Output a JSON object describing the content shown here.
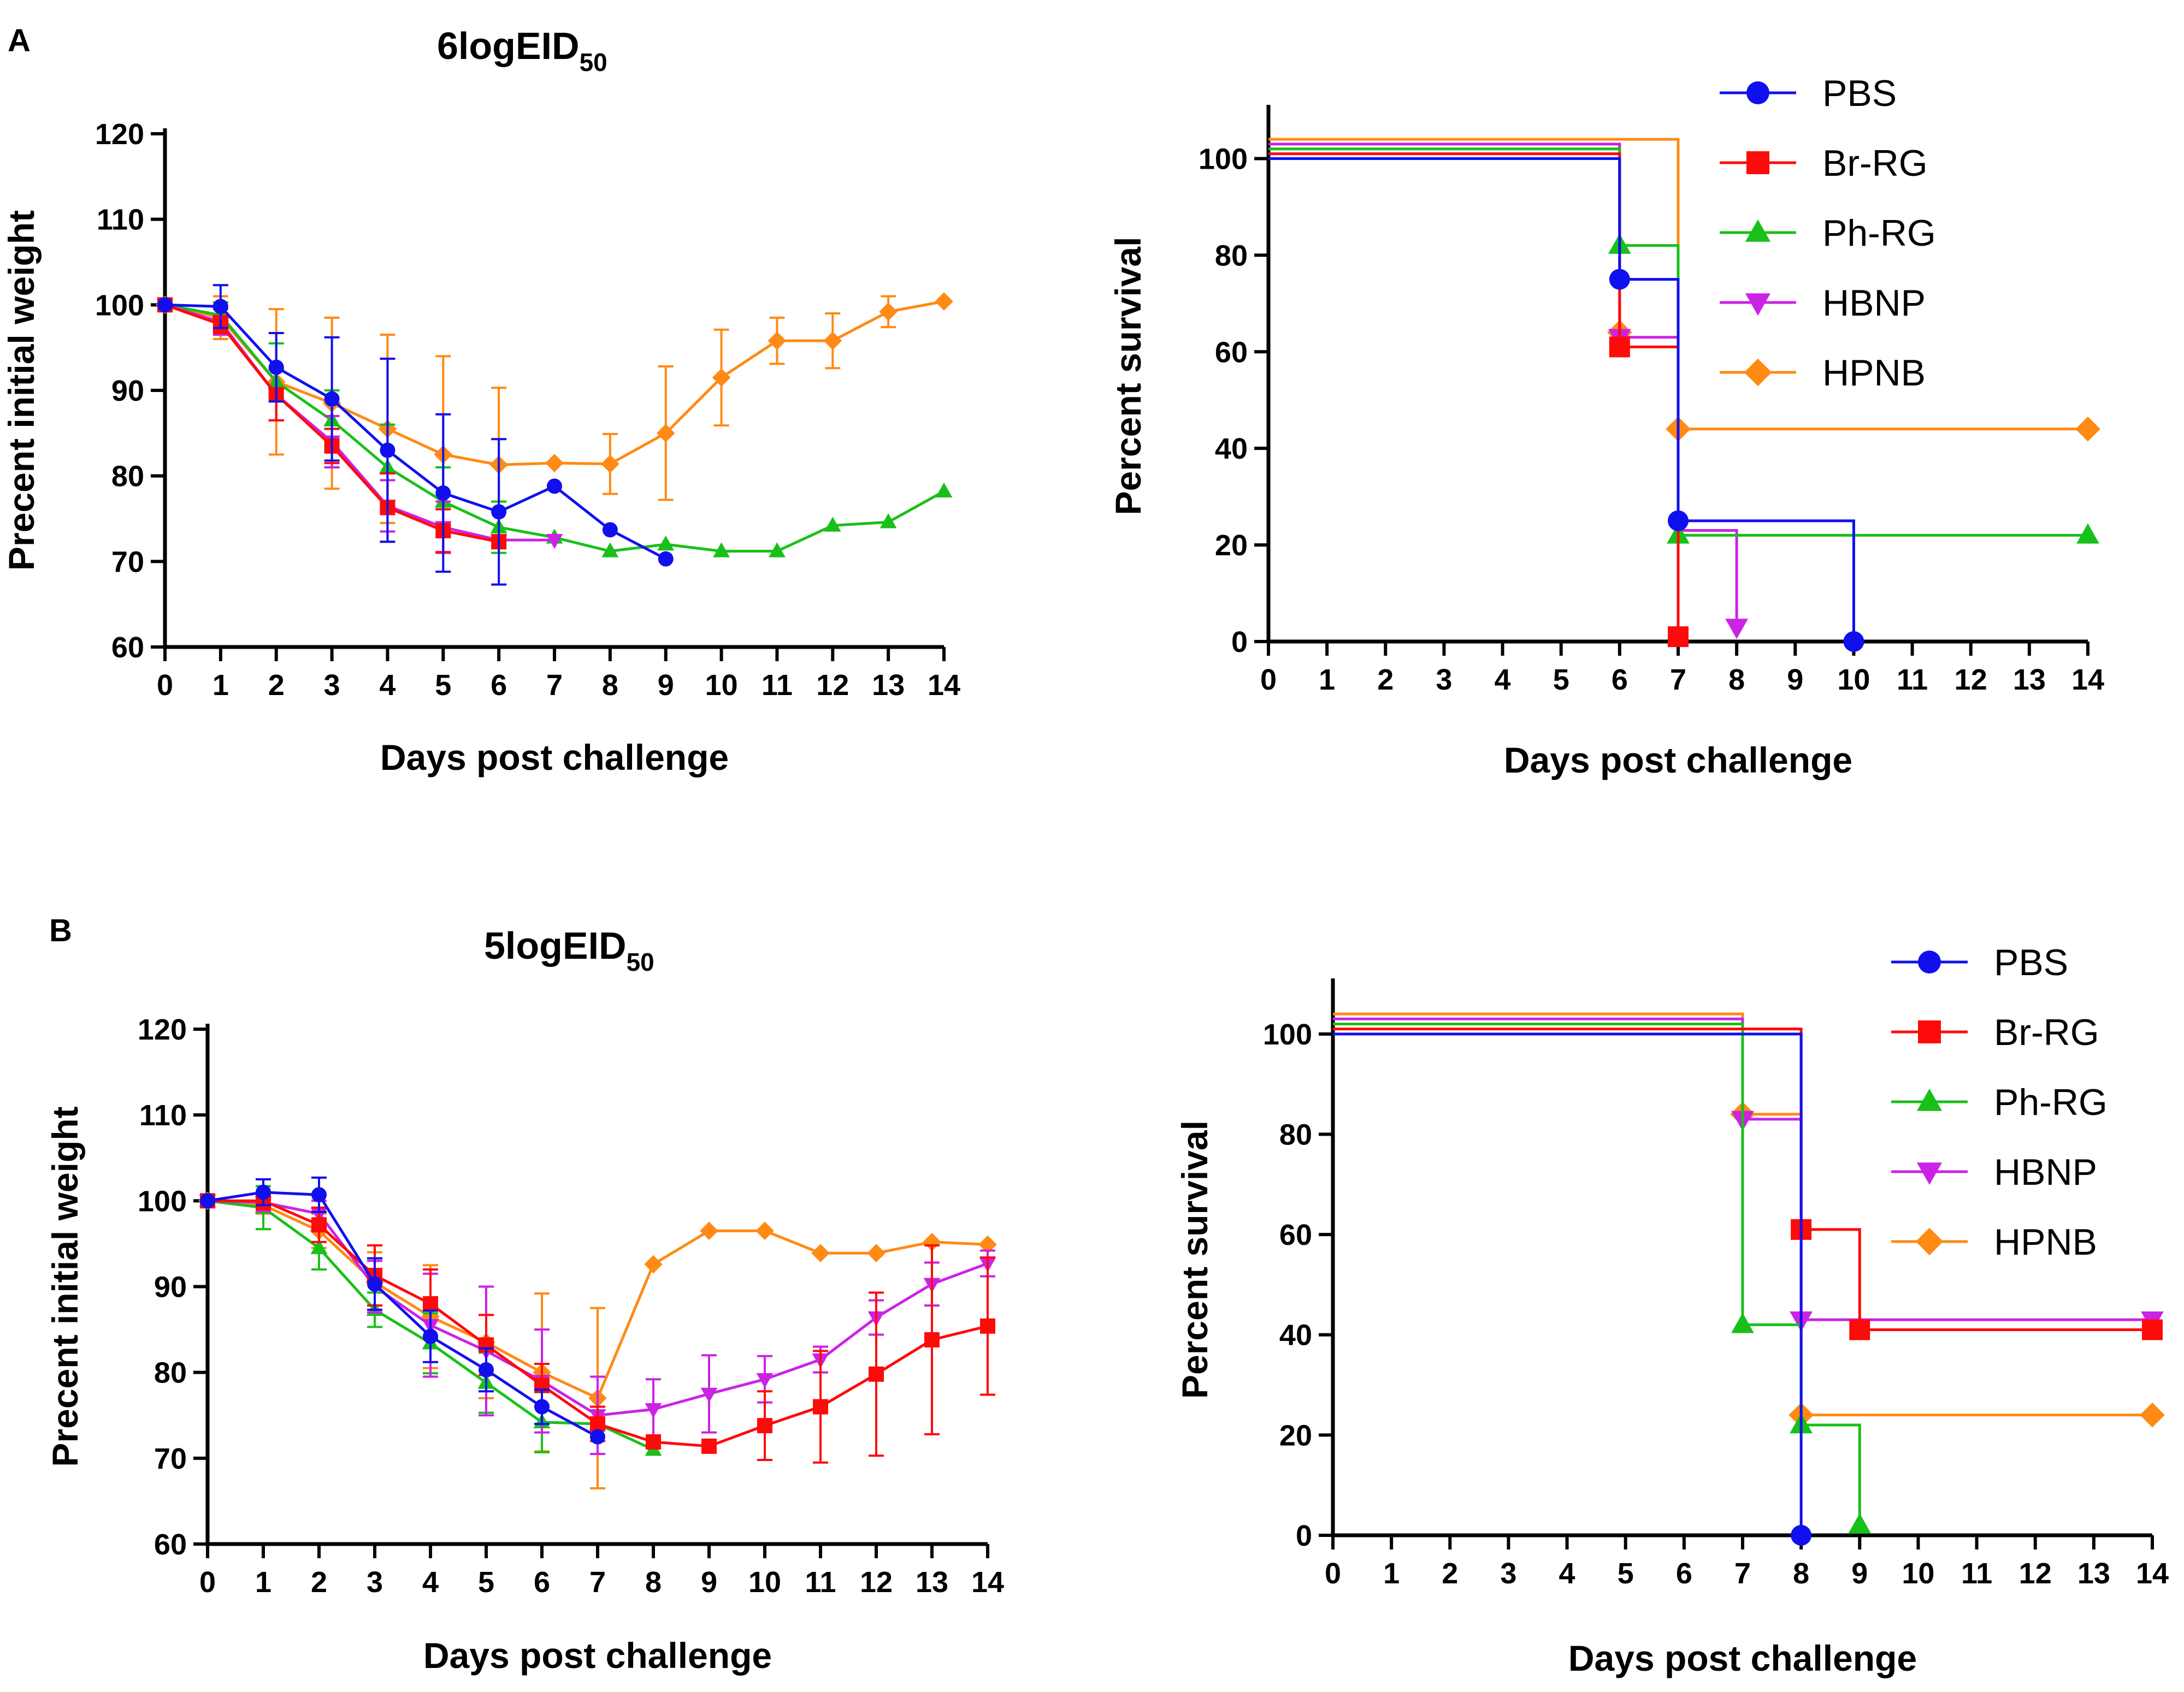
{
  "figure": {
    "panel_a": {
      "label": "A",
      "title": "6logEID",
      "title_sub": "50"
    },
    "panel_b": {
      "label": "B",
      "title": "5logEID",
      "title_sub": "50"
    }
  },
  "colors": {
    "PBS": "#1010ee",
    "Br-RG": "#ff0a0a",
    "Ph-RG": "#19c019",
    "HBNP": "#cc22e6",
    "HPNB": "#ff8a14"
  },
  "chart_data": [
    {
      "id": "A-weight",
      "type": "line",
      "title": "6logEID50",
      "xlabel": "Days post challenge",
      "ylabel": "Precent initial weight",
      "xlim": [
        0,
        14
      ],
      "ylim": [
        60,
        120
      ],
      "xticks": [
        "0",
        "1",
        "2",
        "3",
        "4",
        "5",
        "6",
        "7",
        "8",
        "9",
        "10",
        "11",
        "12",
        "13",
        "14"
      ],
      "yticks": [
        "60",
        "70",
        "80",
        "90",
        "100",
        "110",
        "120"
      ],
      "series": [
        {
          "name": "HPNB",
          "marker": "diamond",
          "x": [
            0,
            1,
            2,
            3,
            4,
            5,
            6,
            7,
            8,
            9,
            10,
            11,
            12,
            13,
            14
          ],
          "y": [
            100,
            98.5,
            91,
            88.5,
            85.5,
            82.5,
            81.3,
            81.5,
            81.4,
            85,
            91.5,
            95.8,
            95.8,
            99.2,
            100.4
          ],
          "err": [
            0,
            2.5,
            8.5,
            10,
            11,
            11.5,
            9,
            0,
            3.5,
            7.8,
            5.6,
            2.7,
            3.2,
            1.8,
            0
          ]
        },
        {
          "name": "Ph-RG",
          "marker": "triangle-up",
          "x": [
            0,
            1,
            2,
            3,
            4,
            5,
            6,
            7,
            8,
            9,
            10,
            11,
            12,
            13,
            14
          ],
          "y": [
            100,
            98.8,
            91,
            86.5,
            81,
            77,
            74,
            72.8,
            71.2,
            72,
            71.2,
            71.2,
            74.2,
            74.6,
            78.2
          ],
          "err": [
            0,
            1.5,
            4.5,
            3.5,
            5,
            4,
            3,
            0,
            0,
            0,
            0,
            0,
            0,
            0,
            0
          ]
        },
        {
          "name": "HBNP",
          "marker": "triangle-down",
          "x": [
            0,
            1,
            2,
            3,
            4,
            5,
            6,
            7
          ],
          "y": [
            100,
            98,
            89.5,
            84,
            76.5,
            74,
            72.5,
            72.5
          ],
          "err": [
            0,
            1.5,
            3,
            3,
            3,
            3,
            0,
            0
          ]
        },
        {
          "name": "Br-RG",
          "marker": "square",
          "x": [
            0,
            1,
            2,
            3,
            4,
            5,
            6
          ],
          "y": [
            100,
            97.7,
            89.5,
            83.5,
            76.3,
            73.6,
            72.3
          ],
          "err": [
            0,
            1,
            3,
            2,
            4,
            2.5,
            0
          ]
        },
        {
          "name": "PBS",
          "marker": "circle",
          "x": [
            0,
            1,
            2,
            3,
            4,
            5,
            6,
            7,
            8,
            9
          ],
          "y": [
            100,
            99.8,
            92.7,
            89,
            83,
            78,
            75.8,
            78.8,
            73.7,
            70.3
          ],
          "err": [
            0,
            2.5,
            4,
            7.2,
            10.7,
            9.2,
            8.5,
            0,
            0,
            0
          ]
        }
      ]
    },
    {
      "id": "A-survival",
      "type": "line",
      "subtype": "survival-step",
      "xlabel": "Days post challenge",
      "ylabel": "Percent survival",
      "xlim": [
        0,
        14
      ],
      "ylim": [
        0,
        110
      ],
      "xticks": [
        "0",
        "1",
        "2",
        "3",
        "4",
        "5",
        "6",
        "7",
        "8",
        "9",
        "10",
        "11",
        "12",
        "13",
        "14"
      ],
      "yticks": [
        "0",
        "20",
        "40",
        "60",
        "80",
        "100"
      ],
      "legend": [
        "PBS",
        "Br-RG",
        "Ph-RG",
        "HBNP",
        "HPNB"
      ],
      "legend_position": "top-right",
      "series": [
        {
          "name": "HPNB",
          "marker": "diamond",
          "steps": [
            [
              0,
              104
            ],
            [
              7,
              44
            ],
            [
              14,
              44
            ]
          ],
          "markers": [
            [
              6,
              64
            ],
            [
              7,
              44
            ],
            [
              14,
              44
            ]
          ]
        },
        {
          "name": "HBNP",
          "marker": "triangle-down",
          "steps": [
            [
              0,
              103
            ],
            [
              6,
              63
            ],
            [
              7,
              23
            ],
            [
              8,
              3
            ]
          ],
          "markers": [
            [
              6,
              63
            ],
            [
              8,
              3
            ]
          ]
        },
        {
          "name": "Ph-RG",
          "marker": "triangle-up",
          "steps": [
            [
              0,
              102
            ],
            [
              6,
              82
            ],
            [
              7,
              22
            ],
            [
              14,
              22
            ]
          ],
          "markers": [
            [
              6,
              82
            ],
            [
              7,
              22
            ],
            [
              14,
              22
            ]
          ]
        },
        {
          "name": "Br-RG",
          "marker": "square",
          "steps": [
            [
              0,
              101
            ],
            [
              6,
              61
            ],
            [
              7,
              1
            ]
          ],
          "markers": [
            [
              6,
              61
            ],
            [
              7,
              1
            ]
          ]
        },
        {
          "name": "PBS",
          "marker": "circle",
          "steps": [
            [
              0,
              100
            ],
            [
              6,
              75
            ],
            [
              7,
              25
            ],
            [
              10,
              0
            ]
          ],
          "markers": [
            [
              6,
              75
            ],
            [
              7,
              25
            ],
            [
              10,
              0
            ]
          ]
        }
      ]
    },
    {
      "id": "B-weight",
      "type": "line",
      "title": "5logEID50",
      "xlabel": "Days post challenge",
      "ylabel": "Precent initial weight",
      "xlim": [
        0,
        14
      ],
      "ylim": [
        60,
        120
      ],
      "xticks": [
        "0",
        "1",
        "2",
        "3",
        "4",
        "5",
        "6",
        "7",
        "8",
        "9",
        "10",
        "11",
        "12",
        "13",
        "14"
      ],
      "yticks": [
        "60",
        "70",
        "80",
        "90",
        "100",
        "110",
        "120"
      ],
      "series": [
        {
          "name": "HPNB",
          "marker": "diamond",
          "x": [
            0,
            1,
            2,
            3,
            4,
            5,
            6,
            7,
            8,
            9,
            10,
            11,
            12,
            13,
            14
          ],
          "y": [
            100,
            99.5,
            96.5,
            90.5,
            86.5,
            83.5,
            80,
            77,
            92.6,
            96.5,
            96.5,
            93.9,
            93.9,
            95.2,
            94.9
          ],
          "err": [
            0,
            1,
            2,
            3.5,
            6,
            6.5,
            9.2,
            10.5,
            0,
            0,
            0,
            0,
            0,
            0,
            0
          ]
        },
        {
          "name": "Ph-RG",
          "marker": "triangle-up",
          "x": [
            0,
            1,
            2,
            3,
            4,
            5,
            6,
            7,
            8
          ],
          "y": [
            100,
            99.2,
            94.5,
            87.3,
            83.4,
            78.8,
            74.2,
            74,
            71
          ],
          "err": [
            0,
            2.5,
            2.5,
            2,
            3.5,
            3.5,
            3.5,
            0,
            0
          ]
        },
        {
          "name": "HBNP",
          "marker": "triangle-down",
          "x": [
            0,
            1,
            2,
            3,
            4,
            5,
            6,
            7,
            8,
            9,
            10,
            11,
            12,
            13,
            14
          ],
          "y": [
            100,
            99.8,
            98.5,
            90,
            85.5,
            82.5,
            79,
            75,
            75.7,
            77.5,
            79.2,
            81.5,
            86.4,
            90.3,
            92.7
          ],
          "err": [
            0,
            1,
            1.5,
            3,
            6,
            7.5,
            6,
            4.5,
            3.5,
            4.5,
            2.7,
            1.5,
            2,
            2.5,
            1.5
          ]
        },
        {
          "name": "Br-RG",
          "marker": "square",
          "x": [
            0,
            1,
            2,
            3,
            4,
            5,
            6,
            7,
            8,
            9,
            10,
            11,
            12,
            13,
            14
          ],
          "y": [
            100,
            100,
            97.2,
            91.3,
            88,
            83.2,
            78.5,
            74,
            71.9,
            71.4,
            73.8,
            76,
            79.8,
            83.8,
            85.4
          ],
          "err": [
            0,
            1,
            2,
            3.5,
            4,
            3.5,
            2.5,
            2,
            0,
            0,
            4,
            6.5,
            9.5,
            11,
            8
          ]
        },
        {
          "name": "PBS",
          "marker": "circle",
          "x": [
            0,
            1,
            2,
            3,
            4,
            5,
            6,
            7
          ],
          "y": [
            100,
            101,
            100.7,
            90.3,
            84.2,
            80.3,
            76,
            72.5
          ],
          "err": [
            0,
            1.5,
            2,
            3,
            3,
            2.5,
            2,
            0
          ]
        }
      ]
    },
    {
      "id": "B-survival",
      "type": "line",
      "subtype": "survival-step",
      "xlabel": "Days post challenge",
      "ylabel": "Percent survival",
      "xlim": [
        0,
        14
      ],
      "ylim": [
        0,
        110
      ],
      "xticks": [
        "0",
        "1",
        "2",
        "3",
        "4",
        "5",
        "6",
        "7",
        "8",
        "9",
        "10",
        "11",
        "12",
        "13",
        "14"
      ],
      "yticks": [
        "0",
        "20",
        "40",
        "60",
        "80",
        "100"
      ],
      "legend": [
        "PBS",
        "Br-RG",
        "Ph-RG",
        "HBNP",
        "HPNB"
      ],
      "legend_position": "top-right",
      "series": [
        {
          "name": "HPNB",
          "marker": "diamond",
          "steps": [
            [
              0,
              104
            ],
            [
              7,
              84
            ],
            [
              8,
              24
            ],
            [
              14,
              24
            ]
          ],
          "markers": [
            [
              7,
              84
            ],
            [
              8,
              24
            ],
            [
              14,
              24
            ]
          ]
        },
        {
          "name": "HBNP",
          "marker": "triangle-down",
          "steps": [
            [
              0,
              103
            ],
            [
              7,
              83
            ],
            [
              8,
              43
            ],
            [
              14,
              43
            ]
          ],
          "markers": [
            [
              7,
              83
            ],
            [
              8,
              43
            ],
            [
              14,
              43
            ]
          ]
        },
        {
          "name": "Ph-RG",
          "marker": "triangle-up",
          "steps": [
            [
              0,
              102
            ],
            [
              7,
              42
            ],
            [
              8,
              22
            ],
            [
              9,
              2
            ]
          ],
          "markers": [
            [
              7,
              42
            ],
            [
              8,
              22
            ],
            [
              9,
              2
            ]
          ]
        },
        {
          "name": "Br-RG",
          "marker": "square",
          "steps": [
            [
              0,
              101
            ],
            [
              8,
              61
            ],
            [
              9,
              41
            ],
            [
              14,
              41
            ]
          ],
          "markers": [
            [
              8,
              61
            ],
            [
              9,
              41
            ],
            [
              14,
              41
            ]
          ]
        },
        {
          "name": "PBS",
          "marker": "circle",
          "steps": [
            [
              0,
              100
            ],
            [
              8,
              0
            ]
          ],
          "markers": [
            [
              8,
              0
            ]
          ]
        }
      ]
    }
  ]
}
